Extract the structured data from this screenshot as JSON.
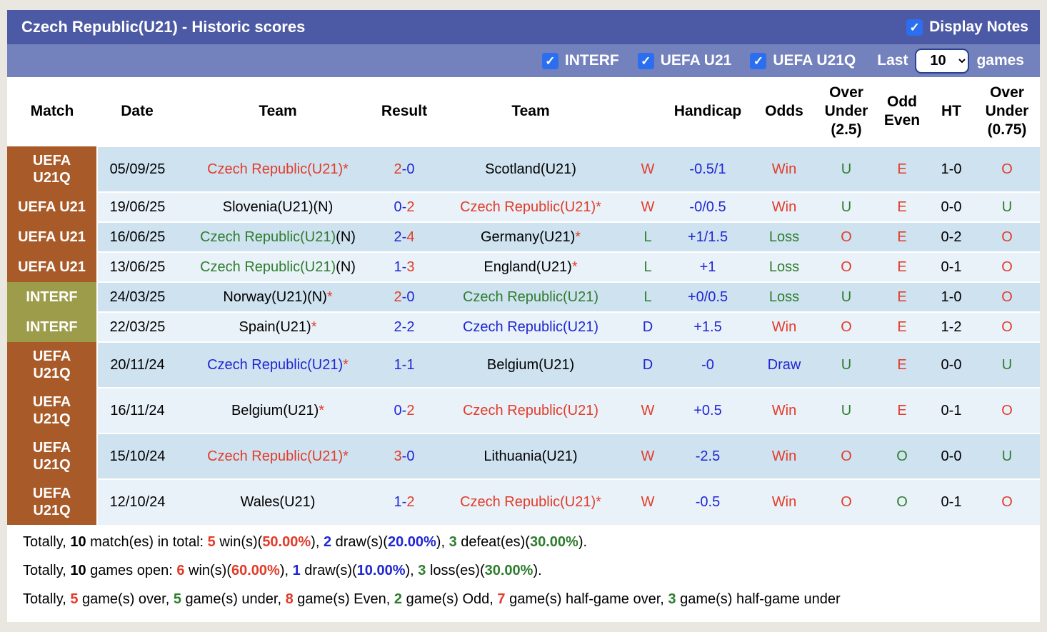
{
  "colors": {
    "title_bar": "#4c59a5",
    "filter_bar": "#7381bc",
    "checkbox_blue": "#2b6ef0",
    "row_dark": "#cfe2f0",
    "row_light": "#e9f2f9",
    "brown": "#a85a28",
    "olive": "#9c9c4a",
    "red": "#e23b29",
    "green": "#2e7d2e",
    "blue": "#2026d2",
    "black": "#000000"
  },
  "header": {
    "title": "Czech Republic(U21) - Historic scores",
    "display_notes_label": "Display Notes",
    "display_notes_checked": true
  },
  "filter_bar": {
    "competitions": [
      {
        "label": "INTERF",
        "checked": true
      },
      {
        "label": "UEFA U21",
        "checked": true
      },
      {
        "label": "UEFA U21Q",
        "checked": true
      }
    ],
    "last_label": "Last",
    "games_count": "10",
    "games_label": "games"
  },
  "table": {
    "columns": [
      {
        "id": "match",
        "lines": [
          "Match"
        ]
      },
      {
        "id": "date",
        "lines": [
          "Date"
        ]
      },
      {
        "id": "home-team",
        "lines": [
          "Team"
        ]
      },
      {
        "id": "result",
        "lines": [
          "Result"
        ]
      },
      {
        "id": "away-team",
        "lines": [
          "Team"
        ]
      },
      {
        "id": "wld",
        "lines": [
          ""
        ]
      },
      {
        "id": "handicap",
        "lines": [
          "Handicap"
        ]
      },
      {
        "id": "odds",
        "lines": [
          "Odds"
        ]
      },
      {
        "id": "over-under-2-5",
        "lines": [
          "Over",
          "Under",
          "(2.5)"
        ]
      },
      {
        "id": "odd-even",
        "lines": [
          "Odd",
          "Even"
        ]
      },
      {
        "id": "ht",
        "lines": [
          "HT"
        ]
      },
      {
        "id": "over-under-0-75",
        "lines": [
          "Over",
          "Under",
          "(0.75)"
        ]
      }
    ],
    "rows": [
      {
        "competition": {
          "lines": [
            "UEFA",
            "U21Q"
          ],
          "bg": "brown"
        },
        "date": "05/09/25",
        "home": {
          "name": "Czech Republic(U21)",
          "note": "",
          "star": true,
          "color": "red"
        },
        "result": {
          "home": "2",
          "away": "0",
          "home_color": "red",
          "away_color": "blue"
        },
        "away": {
          "name": "Scotland(U21)",
          "note": "",
          "star": false,
          "color": "black"
        },
        "wld": {
          "text": "W",
          "color": "red"
        },
        "handicap": {
          "text": "-0.5/1",
          "color": "blue"
        },
        "odds": {
          "text": "Win",
          "color": "red"
        },
        "ou25": {
          "text": "U",
          "color": "green"
        },
        "oe": {
          "text": "E",
          "color": "red"
        },
        "ht": "1-0",
        "ou075": {
          "text": "O",
          "color": "red"
        }
      },
      {
        "competition": {
          "lines": [
            "UEFA U21"
          ],
          "bg": "brown"
        },
        "date": "19/06/25",
        "home": {
          "name": "Slovenia(U21)",
          "note": "(N)",
          "star": false,
          "color": "black"
        },
        "result": {
          "home": "0",
          "away": "2",
          "home_color": "blue",
          "away_color": "red"
        },
        "away": {
          "name": "Czech Republic(U21)",
          "note": "",
          "star": true,
          "color": "red"
        },
        "wld": {
          "text": "W",
          "color": "red"
        },
        "handicap": {
          "text": "-0/0.5",
          "color": "blue"
        },
        "odds": {
          "text": "Win",
          "color": "red"
        },
        "ou25": {
          "text": "U",
          "color": "green"
        },
        "oe": {
          "text": "E",
          "color": "red"
        },
        "ht": "0-0",
        "ou075": {
          "text": "U",
          "color": "green"
        }
      },
      {
        "competition": {
          "lines": [
            "UEFA U21"
          ],
          "bg": "brown"
        },
        "date": "16/06/25",
        "home": {
          "name": "Czech Republic(U21)",
          "note": "(N)",
          "star": false,
          "color": "green"
        },
        "result": {
          "home": "2",
          "away": "4",
          "home_color": "blue",
          "away_color": "red"
        },
        "away": {
          "name": "Germany(U21)",
          "note": "",
          "star": true,
          "color": "black"
        },
        "wld": {
          "text": "L",
          "color": "green"
        },
        "handicap": {
          "text": "+1/1.5",
          "color": "blue"
        },
        "odds": {
          "text": "Loss",
          "color": "green"
        },
        "ou25": {
          "text": "O",
          "color": "red"
        },
        "oe": {
          "text": "E",
          "color": "red"
        },
        "ht": "0-2",
        "ou075": {
          "text": "O",
          "color": "red"
        }
      },
      {
        "competition": {
          "lines": [
            "UEFA U21"
          ],
          "bg": "brown"
        },
        "date": "13/06/25",
        "home": {
          "name": "Czech Republic(U21)",
          "note": "(N)",
          "star": false,
          "color": "green"
        },
        "result": {
          "home": "1",
          "away": "3",
          "home_color": "blue",
          "away_color": "red"
        },
        "away": {
          "name": "England(U21)",
          "note": "",
          "star": true,
          "color": "black"
        },
        "wld": {
          "text": "L",
          "color": "green"
        },
        "handicap": {
          "text": "+1",
          "color": "blue"
        },
        "odds": {
          "text": "Loss",
          "color": "green"
        },
        "ou25": {
          "text": "O",
          "color": "red"
        },
        "oe": {
          "text": "E",
          "color": "red"
        },
        "ht": "0-1",
        "ou075": {
          "text": "O",
          "color": "red"
        }
      },
      {
        "competition": {
          "lines": [
            "INTERF"
          ],
          "bg": "olive"
        },
        "date": "24/03/25",
        "home": {
          "name": "Norway(U21)",
          "note": "(N)",
          "star": true,
          "color": "black"
        },
        "result": {
          "home": "2",
          "away": "0",
          "home_color": "red",
          "away_color": "blue"
        },
        "away": {
          "name": "Czech Republic(U21)",
          "note": "",
          "star": false,
          "color": "green"
        },
        "wld": {
          "text": "L",
          "color": "green"
        },
        "handicap": {
          "text": "+0/0.5",
          "color": "blue"
        },
        "odds": {
          "text": "Loss",
          "color": "green"
        },
        "ou25": {
          "text": "U",
          "color": "green"
        },
        "oe": {
          "text": "E",
          "color": "red"
        },
        "ht": "1-0",
        "ou075": {
          "text": "O",
          "color": "red"
        }
      },
      {
        "competition": {
          "lines": [
            "INTERF"
          ],
          "bg": "olive"
        },
        "date": "22/03/25",
        "home": {
          "name": "Spain(U21)",
          "note": "",
          "star": true,
          "color": "black"
        },
        "result": {
          "home": "2",
          "away": "2",
          "home_color": "blue",
          "away_color": "blue"
        },
        "away": {
          "name": "Czech Republic(U21)",
          "note": "",
          "star": false,
          "color": "blue"
        },
        "wld": {
          "text": "D",
          "color": "blue"
        },
        "handicap": {
          "text": "+1.5",
          "color": "blue"
        },
        "odds": {
          "text": "Win",
          "color": "red"
        },
        "ou25": {
          "text": "O",
          "color": "red"
        },
        "oe": {
          "text": "E",
          "color": "red"
        },
        "ht": "1-2",
        "ou075": {
          "text": "O",
          "color": "red"
        }
      },
      {
        "competition": {
          "lines": [
            "UEFA",
            "U21Q"
          ],
          "bg": "brown"
        },
        "date": "20/11/24",
        "home": {
          "name": "Czech Republic(U21)",
          "note": "",
          "star": true,
          "color": "blue"
        },
        "result": {
          "home": "1",
          "away": "1",
          "home_color": "blue",
          "away_color": "blue"
        },
        "away": {
          "name": "Belgium(U21)",
          "note": "",
          "star": false,
          "color": "black"
        },
        "wld": {
          "text": "D",
          "color": "blue"
        },
        "handicap": {
          "text": "-0",
          "color": "blue"
        },
        "odds": {
          "text": "Draw",
          "color": "blue"
        },
        "ou25": {
          "text": "U",
          "color": "green"
        },
        "oe": {
          "text": "E",
          "color": "red"
        },
        "ht": "0-0",
        "ou075": {
          "text": "U",
          "color": "green"
        }
      },
      {
        "competition": {
          "lines": [
            "UEFA",
            "U21Q"
          ],
          "bg": "brown"
        },
        "date": "16/11/24",
        "home": {
          "name": "Belgium(U21)",
          "note": "",
          "star": true,
          "color": "black"
        },
        "result": {
          "home": "0",
          "away": "2",
          "home_color": "blue",
          "away_color": "red"
        },
        "away": {
          "name": "Czech Republic(U21)",
          "note": "",
          "star": false,
          "color": "red"
        },
        "wld": {
          "text": "W",
          "color": "red"
        },
        "handicap": {
          "text": "+0.5",
          "color": "blue"
        },
        "odds": {
          "text": "Win",
          "color": "red"
        },
        "ou25": {
          "text": "U",
          "color": "green"
        },
        "oe": {
          "text": "E",
          "color": "red"
        },
        "ht": "0-1",
        "ou075": {
          "text": "O",
          "color": "red"
        }
      },
      {
        "competition": {
          "lines": [
            "UEFA",
            "U21Q"
          ],
          "bg": "brown"
        },
        "date": "15/10/24",
        "home": {
          "name": "Czech Republic(U21)",
          "note": "",
          "star": true,
          "color": "red"
        },
        "result": {
          "home": "3",
          "away": "0",
          "home_color": "red",
          "away_color": "blue"
        },
        "away": {
          "name": "Lithuania(U21)",
          "note": "",
          "star": false,
          "color": "black"
        },
        "wld": {
          "text": "W",
          "color": "red"
        },
        "handicap": {
          "text": "-2.5",
          "color": "blue"
        },
        "odds": {
          "text": "Win",
          "color": "red"
        },
        "ou25": {
          "text": "O",
          "color": "red"
        },
        "oe": {
          "text": "O",
          "color": "green"
        },
        "ht": "0-0",
        "ou075": {
          "text": "U",
          "color": "green"
        }
      },
      {
        "competition": {
          "lines": [
            "UEFA",
            "U21Q"
          ],
          "bg": "brown"
        },
        "date": "12/10/24",
        "home": {
          "name": "Wales(U21)",
          "note": "",
          "star": false,
          "color": "black"
        },
        "result": {
          "home": "1",
          "away": "2",
          "home_color": "blue",
          "away_color": "red"
        },
        "away": {
          "name": "Czech Republic(U21)",
          "note": "",
          "star": true,
          "color": "red"
        },
        "wld": {
          "text": "W",
          "color": "red"
        },
        "handicap": {
          "text": "-0.5",
          "color": "blue"
        },
        "odds": {
          "text": "Win",
          "color": "red"
        },
        "ou25": {
          "text": "O",
          "color": "red"
        },
        "oe": {
          "text": "O",
          "color": "green"
        },
        "ht": "0-1",
        "ou075": {
          "text": "O",
          "color": "red"
        }
      }
    ]
  },
  "summary": {
    "lines": [
      [
        {
          "t": "Totally, "
        },
        {
          "t": "10",
          "b": 1
        },
        {
          "t": " match(es) in total: "
        },
        {
          "t": "5",
          "b": 1,
          "c": "red"
        },
        {
          "t": " win(s)("
        },
        {
          "t": "50.00%",
          "b": 1,
          "c": "red"
        },
        {
          "t": "), "
        },
        {
          "t": "2",
          "b": 1,
          "c": "blue"
        },
        {
          "t": " draw(s)("
        },
        {
          "t": "20.00%",
          "b": 1,
          "c": "blue"
        },
        {
          "t": "), "
        },
        {
          "t": "3",
          "b": 1,
          "c": "green"
        },
        {
          "t": " defeat(es)("
        },
        {
          "t": "30.00%",
          "b": 1,
          "c": "green"
        },
        {
          "t": ")."
        }
      ],
      [
        {
          "t": "Totally, "
        },
        {
          "t": "10",
          "b": 1
        },
        {
          "t": " games open: "
        },
        {
          "t": "6",
          "b": 1,
          "c": "red"
        },
        {
          "t": " win(s)("
        },
        {
          "t": "60.00%",
          "b": 1,
          "c": "red"
        },
        {
          "t": "), "
        },
        {
          "t": "1",
          "b": 1,
          "c": "blue"
        },
        {
          "t": " draw(s)("
        },
        {
          "t": "10.00%",
          "b": 1,
          "c": "blue"
        },
        {
          "t": "), "
        },
        {
          "t": "3",
          "b": 1,
          "c": "green"
        },
        {
          "t": " loss(es)("
        },
        {
          "t": "30.00%",
          "b": 1,
          "c": "green"
        },
        {
          "t": ")."
        }
      ],
      [
        {
          "t": "Totally, "
        },
        {
          "t": "5",
          "b": 1,
          "c": "red"
        },
        {
          "t": " game(s) over, "
        },
        {
          "t": "5",
          "b": 1,
          "c": "green"
        },
        {
          "t": " game(s) under, "
        },
        {
          "t": "8",
          "b": 1,
          "c": "red"
        },
        {
          "t": " game(s) Even, "
        },
        {
          "t": "2",
          "b": 1,
          "c": "green"
        },
        {
          "t": " game(s) Odd, "
        },
        {
          "t": "7",
          "b": 1,
          "c": "red"
        },
        {
          "t": " game(s) half-game over, "
        },
        {
          "t": "3",
          "b": 1,
          "c": "green"
        },
        {
          "t": " game(s) half-game under"
        }
      ]
    ]
  }
}
